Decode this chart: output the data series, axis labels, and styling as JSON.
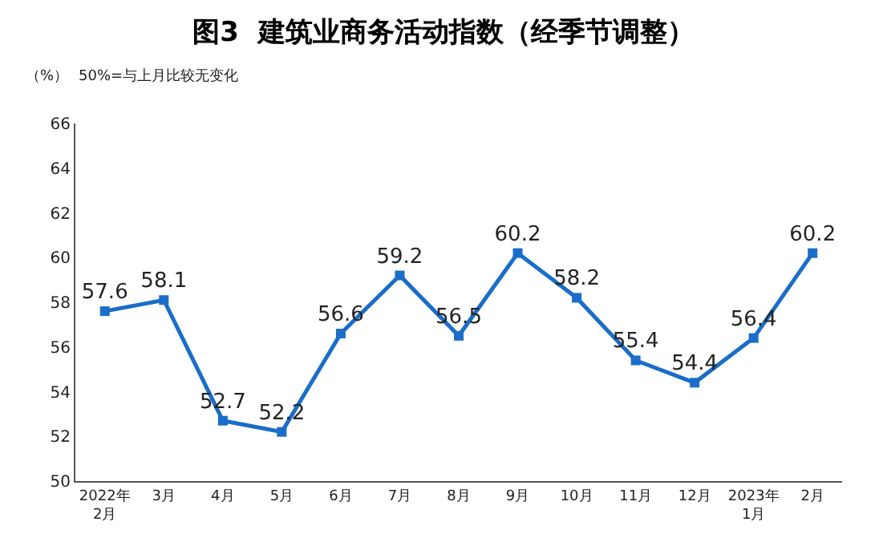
{
  "chart_data": {
    "type": "line",
    "title": "图3  建筑业商务活动指数（经季节调整）",
    "categories": [
      "2022年\n2月",
      "3月",
      "4月",
      "5月",
      "6月",
      "7月",
      "8月",
      "9月",
      "10月",
      "11月",
      "12月",
      "2023年\n1月",
      "2月"
    ],
    "series": [
      {
        "color": "#1a6dc8",
        "values": [
          57.6,
          58.1,
          52.7,
          52.2,
          56.6,
          59.2,
          56.5,
          60.2,
          58.2,
          55.4,
          54.4,
          56.4,
          60.2
        ]
      }
    ],
    "ylim": [
      50,
      66
    ],
    "yticks": [
      50,
      52,
      54,
      56,
      58,
      60,
      62,
      64,
      66
    ],
    "grid": false,
    "legend": false,
    "marker": "square",
    "line_style": "solid",
    "data_labels": true,
    "annotations": [
      "（%）",
      "50%=与上月比较无变化"
    ]
  }
}
